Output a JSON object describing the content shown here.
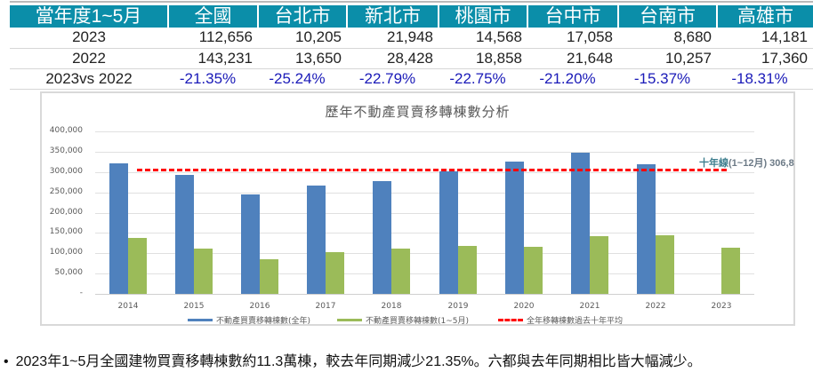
{
  "table": {
    "headers": [
      "當年度1~5月",
      "全國",
      "台北市",
      "新北市",
      "桃園市",
      "台中市",
      "台南市",
      "高雄市"
    ],
    "rows": [
      {
        "label": "2023",
        "values": [
          "112,656",
          "10,205",
          "21,948",
          "14,568",
          "17,058",
          "8,680",
          "14,181"
        ]
      },
      {
        "label": "2022",
        "values": [
          "143,231",
          "13,650",
          "28,428",
          "18,858",
          "21,648",
          "10,257",
          "17,360"
        ]
      },
      {
        "label": "2023vs 2022",
        "values": [
          "-21.35%",
          "-25.24%",
          "-22.79%",
          "-22.75%",
          "-21.20%",
          "-15.37%",
          "-18.31%"
        ]
      }
    ],
    "colors": {
      "header_bg": "#0b8ea9",
      "header_text": "#ffffff",
      "pct_text": "#1a1ab8"
    }
  },
  "chart_data": {
    "type": "bar",
    "title": "歷年不動產買賣移轉棟數分析",
    "categories": [
      "2014",
      "2015",
      "2016",
      "2017",
      "2018",
      "2019",
      "2020",
      "2021",
      "2022",
      "2023"
    ],
    "series": [
      {
        "name": "不動產買賣移轉棟數(全年)",
        "color": "#4f81bd",
        "values": [
          321000,
          293000,
          245000,
          267000,
          277000,
          301000,
          326000,
          348000,
          319000,
          null
        ]
      },
      {
        "name": "不動產買賣移轉棟數(1~5月)",
        "color": "#9bbb59",
        "values": [
          138000,
          111000,
          85000,
          103000,
          111000,
          118000,
          116000,
          142000,
          143231,
          112656
        ]
      }
    ],
    "reference_line": {
      "name": "全年移轉棟數過去十年平均",
      "value": 306800,
      "color": "#ff0000",
      "style": "dashed",
      "label_cjk": "十年線",
      "label_rest": "(1~12月) 306,8"
    },
    "yticks": [
      "400,000",
      "350,000",
      "300,000",
      "250,000",
      "200,000",
      "150,000",
      "100,000",
      "50,000",
      "-"
    ],
    "ylim": [
      0,
      400000
    ],
    "xlabel": "",
    "ylabel": "",
    "grid": true,
    "legend_position": "bottom"
  },
  "note": {
    "bullet": "•",
    "text": "2023年1~5月全國建物買賣移轉棟數約11.3萬棟，較去年同期減少21.35%。六都與去年同期相比皆大幅減少。"
  }
}
